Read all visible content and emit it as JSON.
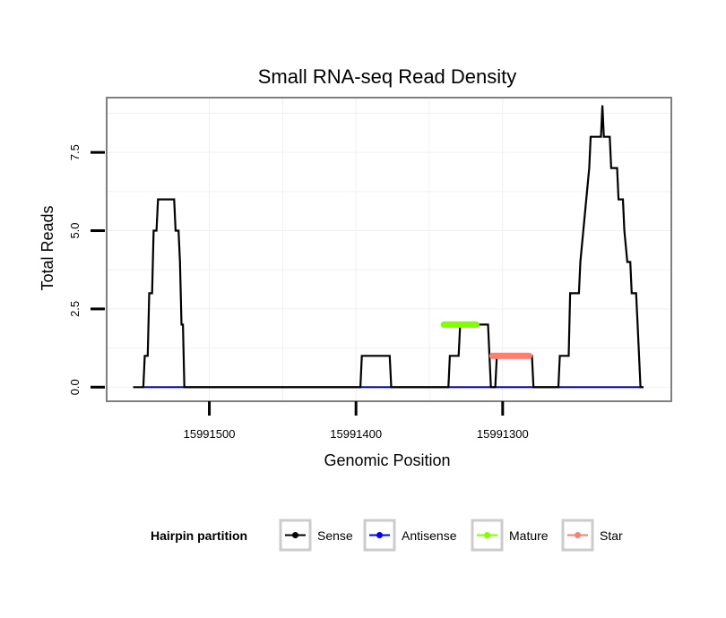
{
  "chart_data": {
    "type": "line",
    "title": "Small RNA-seq Read Density",
    "xlabel": "Genomic Position",
    "ylabel": "Total Reads",
    "x_reversed": true,
    "xlim": [
      15991570,
      15991185
    ],
    "ylim": [
      -0.45,
      9.25
    ],
    "x_ticks": [
      15991500,
      15991400,
      15991300
    ],
    "x_tick_labels": [
      "15991500",
      "15991400",
      "15991300"
    ],
    "y_ticks": [
      0,
      2.5,
      5,
      7.5
    ],
    "y_tick_labels": [
      "0.0",
      "2.5",
      "5.0",
      "7.5"
    ],
    "grid": true,
    "legend": {
      "title": "Hairpin partition",
      "position": "bottom",
      "entries": [
        "Sense",
        "Antisense",
        "Mature",
        "Star"
      ]
    },
    "series": [
      {
        "name": "Sense",
        "color": "#000000",
        "style": "line",
        "points": [
          [
            15991552,
            0
          ],
          [
            15991545,
            0
          ],
          [
            15991544,
            1
          ],
          [
            15991542,
            1
          ],
          [
            15991541,
            3
          ],
          [
            15991539,
            3
          ],
          [
            15991538,
            5
          ],
          [
            15991536,
            5
          ],
          [
            15991535,
            6
          ],
          [
            15991524,
            6
          ],
          [
            15991523,
            5
          ],
          [
            15991521,
            5
          ],
          [
            15991520,
            4
          ],
          [
            15991519,
            2
          ],
          [
            15991518,
            2
          ],
          [
            15991517,
            0
          ],
          [
            15991397,
            0
          ],
          [
            15991396,
            1
          ],
          [
            15991377,
            1
          ],
          [
            15991376,
            0
          ],
          [
            15991337,
            0
          ],
          [
            15991336,
            1
          ],
          [
            15991330,
            1
          ],
          [
            15991329,
            2
          ],
          [
            15991310,
            2
          ],
          [
            15991309,
            1
          ],
          [
            15991308,
            0
          ],
          [
            15991305,
            0
          ],
          [
            15991304,
            1
          ],
          [
            15991280,
            1
          ],
          [
            15991279,
            0
          ],
          [
            15991262,
            0
          ],
          [
            15991261,
            1
          ],
          [
            15991255,
            1
          ],
          [
            15991254,
            3
          ],
          [
            15991248,
            3
          ],
          [
            15991247,
            4
          ],
          [
            15991245,
            5
          ],
          [
            15991243,
            6
          ],
          [
            15991241,
            7
          ],
          [
            15991240,
            8
          ],
          [
            15991233,
            8
          ],
          [
            15991232,
            9
          ],
          [
            15991231,
            8
          ],
          [
            15991227,
            8
          ],
          [
            15991226,
            7
          ],
          [
            15991222,
            7
          ],
          [
            15991221,
            6
          ],
          [
            15991218,
            6
          ],
          [
            15991217,
            5
          ],
          [
            15991215,
            4
          ],
          [
            15991213,
            4
          ],
          [
            15991212,
            3
          ],
          [
            15991209,
            3
          ],
          [
            15991208,
            2
          ],
          [
            15991206,
            0
          ],
          [
            15991204,
            0
          ]
        ]
      },
      {
        "name": "Antisense",
        "color": "#0000ff",
        "style": "line",
        "points": [
          [
            15991545,
            0
          ],
          [
            15991204,
            0
          ]
        ]
      },
      {
        "name": "Mature",
        "color": "#7fff00",
        "style": "points",
        "points": [
          [
            15991340,
            2
          ],
          [
            15991318,
            2
          ]
        ]
      },
      {
        "name": "Star",
        "color": "#fa8072",
        "style": "points",
        "points": [
          [
            15991307,
            1
          ],
          [
            15991282,
            1
          ]
        ]
      }
    ]
  }
}
